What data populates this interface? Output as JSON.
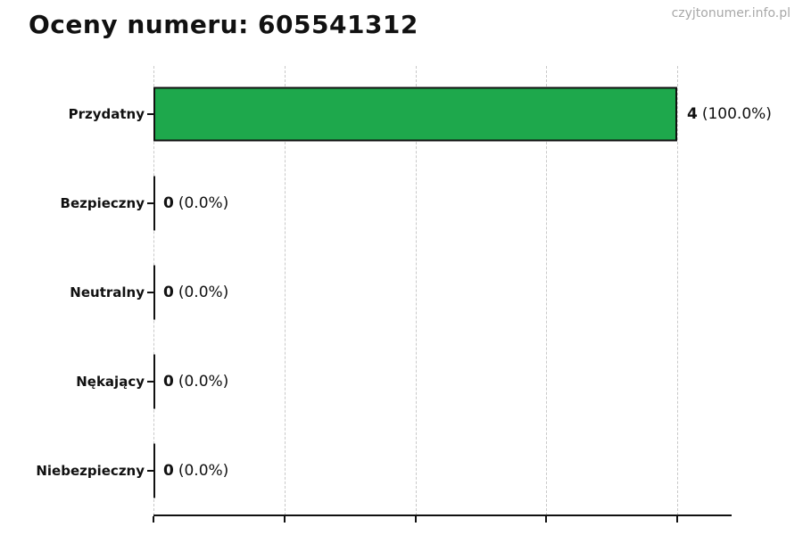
{
  "page": {
    "title": "Oceny numeru: 605541312",
    "watermark": "czyjtonumer.info.pl"
  },
  "chart_data": {
    "type": "bar",
    "orientation": "horizontal",
    "title": "Oceny numeru: 605541312",
    "categories": [
      "Przydatny",
      "Bezpieczny",
      "Neutralny",
      "Nękający",
      "Niebezpieczny"
    ],
    "values": [
      4,
      0,
      0,
      0,
      0
    ],
    "value_labels": [
      {
        "count": "4",
        "pct": "(100.0%)"
      },
      {
        "count": "0",
        "pct": "(0.0%)"
      },
      {
        "count": "0",
        "pct": "(0.0%)"
      },
      {
        "count": "0",
        "pct": "(0.0%)"
      },
      {
        "count": "0",
        "pct": "(0.0%)"
      }
    ],
    "xlabel": "",
    "ylabel": "",
    "xlim": [
      0,
      4.4
    ],
    "x_ticks": [
      0,
      1,
      2,
      3,
      4
    ],
    "x_tick_labels_visible": false,
    "grid": "vertical-dashed",
    "legend": "none",
    "bar_color": "#1ea84c",
    "bar_edge_color": "#111111",
    "grid_color": "#c9c9c9",
    "axis_color": "#111111",
    "watermark_color": "#a8a8a8"
  }
}
